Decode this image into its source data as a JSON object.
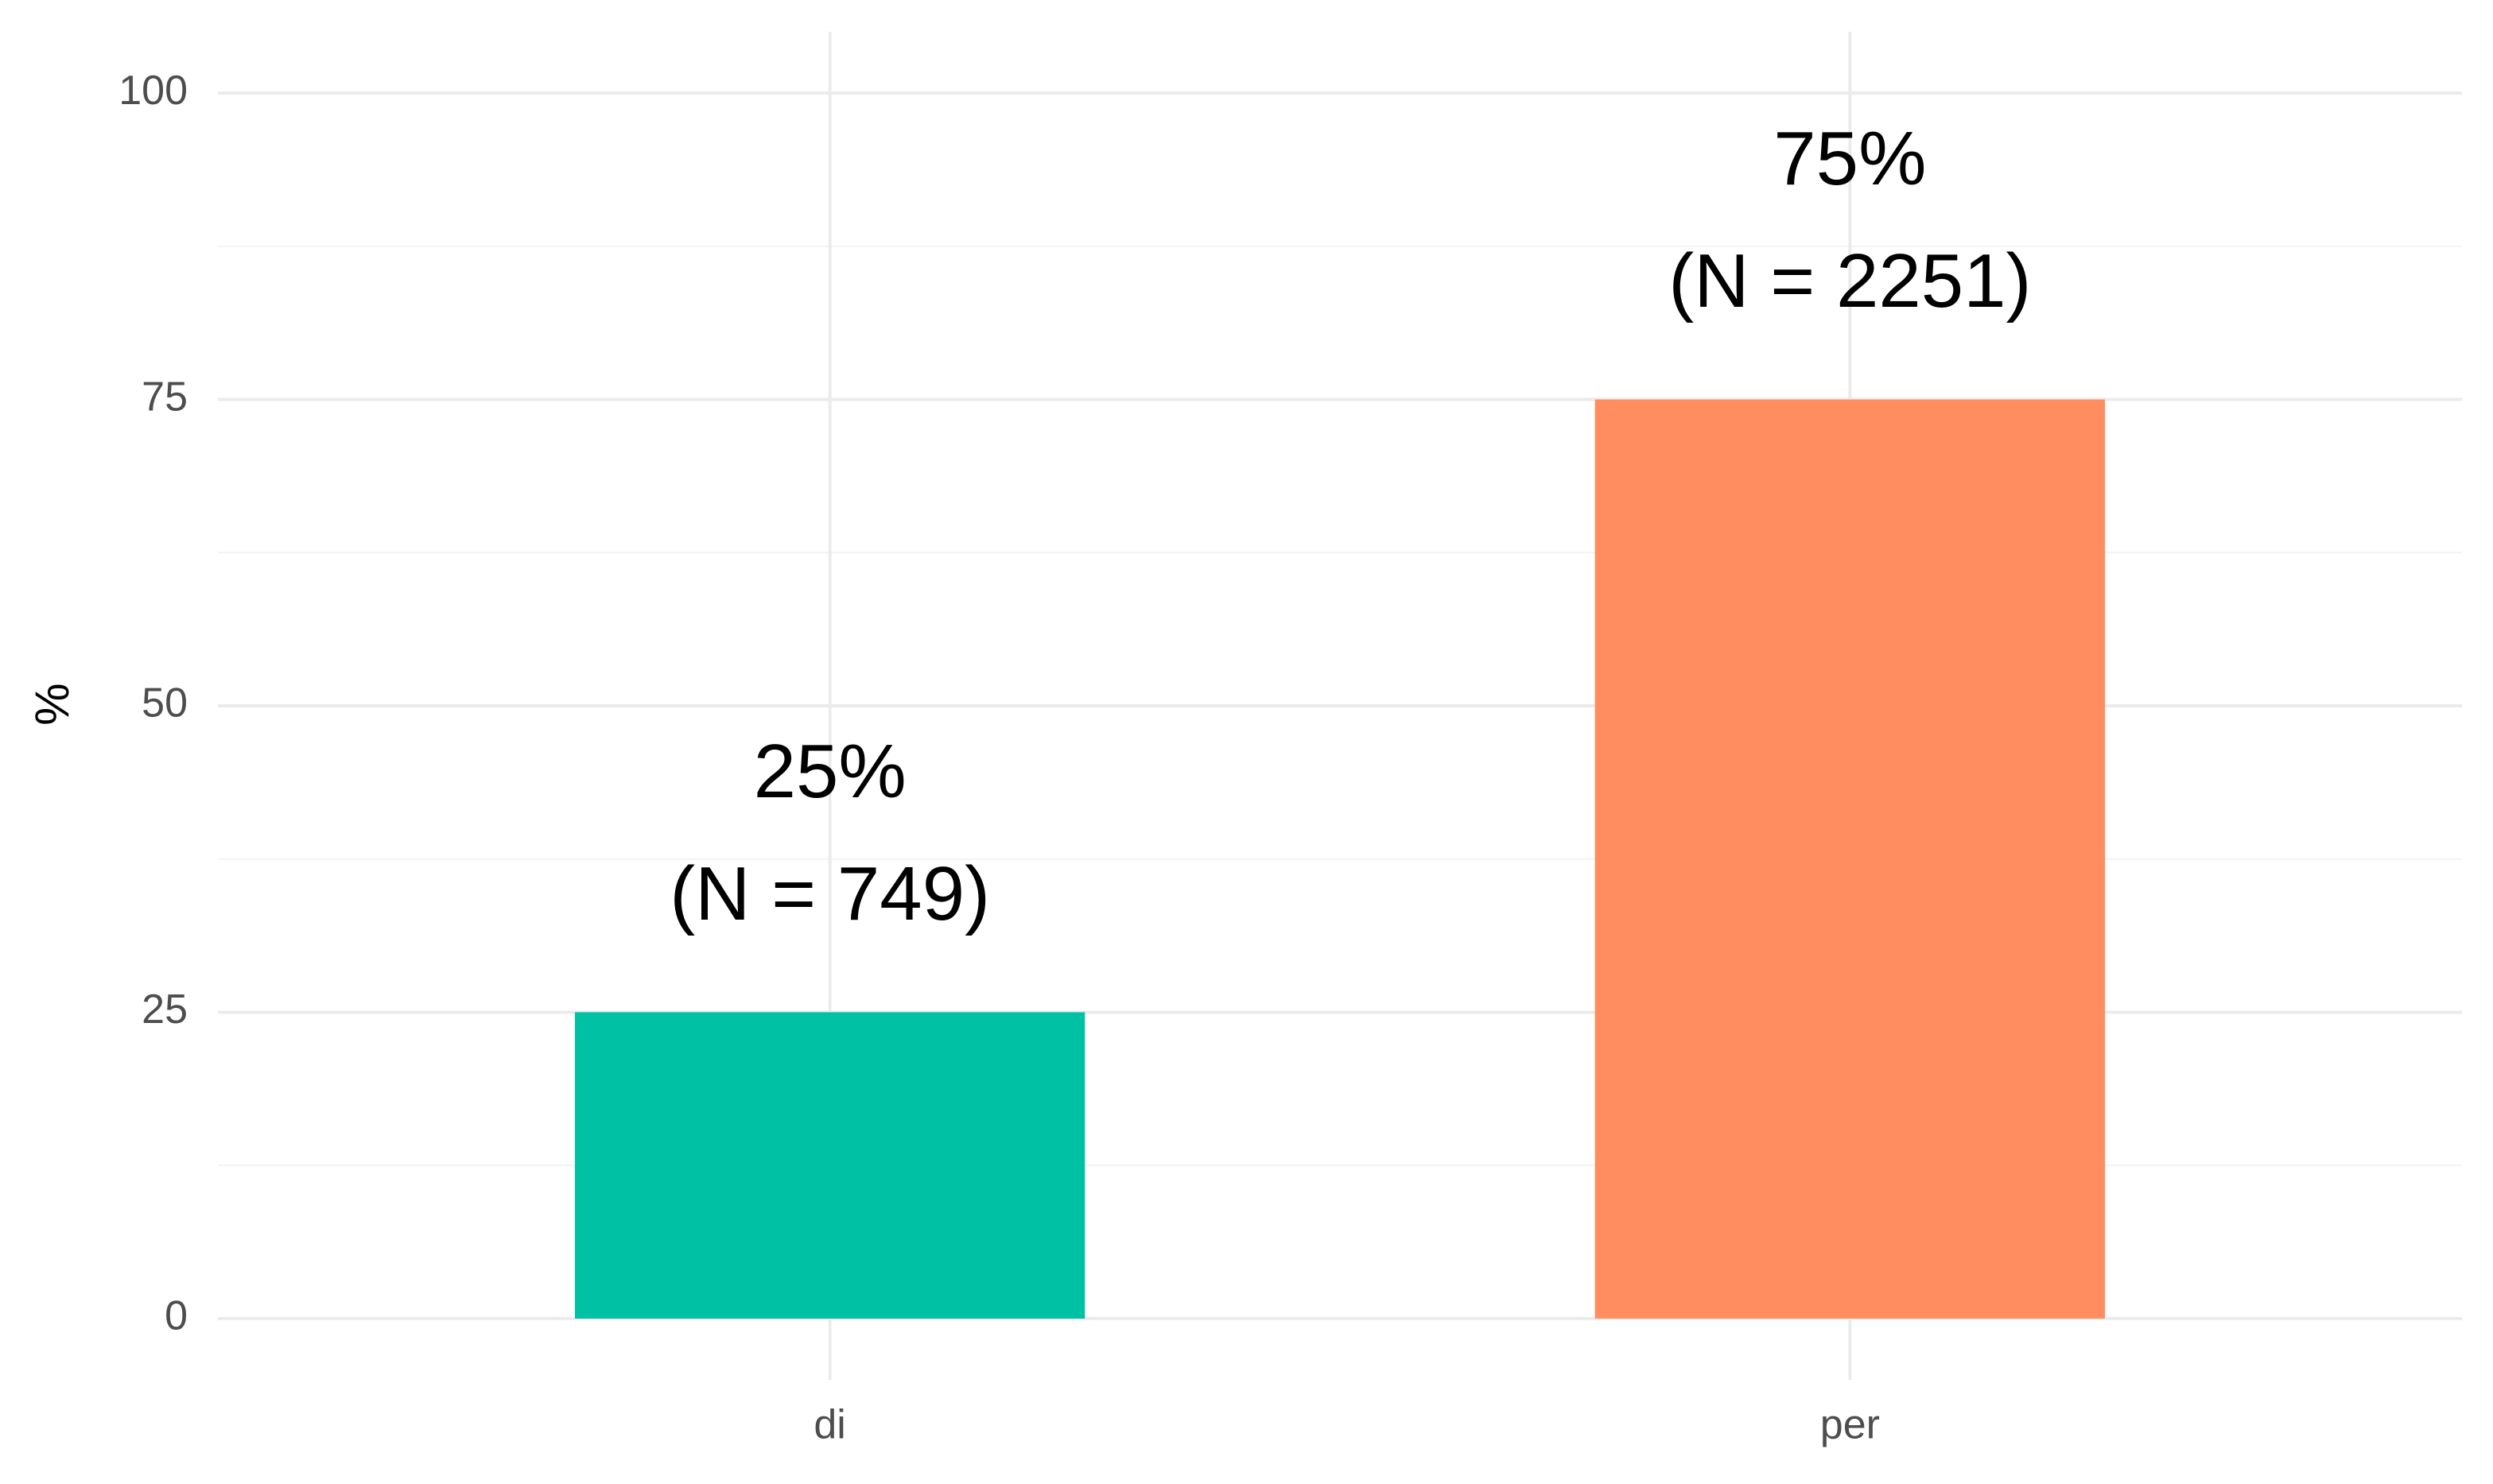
{
  "chart_data": {
    "type": "bar",
    "ylabel": "%",
    "categories": [
      "di",
      "per"
    ],
    "values": [
      25,
      75
    ],
    "value_labels": [
      "25%",
      "75%"
    ],
    "count_labels": [
      "(N = 749)",
      "(N = 2251)"
    ],
    "colors": [
      "#00c1a3",
      "#ff8d60"
    ],
    "ylim": [
      -5,
      105
    ],
    "yticks": [
      0,
      25,
      50,
      75,
      100
    ],
    "grid": true
  }
}
